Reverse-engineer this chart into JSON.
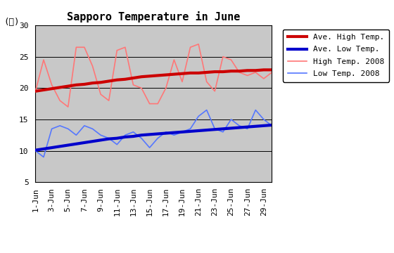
{
  "title": "Sapporo Temperature in June",
  "ylabel": "(℃)",
  "ylim": [
    5,
    30
  ],
  "yticks": [
    5,
    10,
    15,
    20,
    25,
    30
  ],
  "background_color": "#c8c8c8",
  "days": [
    1,
    2,
    3,
    4,
    5,
    6,
    7,
    8,
    9,
    10,
    11,
    12,
    13,
    14,
    15,
    16,
    17,
    18,
    19,
    20,
    21,
    22,
    23,
    24,
    25,
    26,
    27,
    28,
    29,
    30
  ],
  "x_tick_labels": [
    "1-Jun",
    "3-Jun",
    "5-Jun",
    "7-Jun",
    "9-Jun",
    "11-Jun",
    "13-Jun",
    "15-Jun",
    "17-Jun",
    "19-Jun",
    "21-Jun",
    "23-Jun",
    "25-Jun",
    "27-Jun",
    "29-Jun"
  ],
  "x_tick_positions": [
    1,
    3,
    5,
    7,
    9,
    11,
    13,
    15,
    17,
    19,
    21,
    23,
    25,
    27,
    29
  ],
  "ave_high": [
    19.5,
    19.7,
    19.9,
    20.1,
    20.3,
    20.5,
    20.6,
    20.8,
    20.9,
    21.1,
    21.3,
    21.4,
    21.6,
    21.8,
    21.9,
    22.0,
    22.1,
    22.2,
    22.3,
    22.4,
    22.4,
    22.5,
    22.6,
    22.6,
    22.7,
    22.7,
    22.8,
    22.8,
    22.9,
    22.9
  ],
  "ave_low": [
    10.1,
    10.3,
    10.5,
    10.7,
    10.9,
    11.1,
    11.3,
    11.5,
    11.7,
    11.9,
    12.0,
    12.2,
    12.3,
    12.5,
    12.6,
    12.7,
    12.8,
    12.9,
    13.0,
    13.1,
    13.2,
    13.3,
    13.4,
    13.5,
    13.6,
    13.7,
    13.8,
    13.9,
    14.0,
    14.1
  ],
  "high_2008": [
    19.5,
    24.5,
    20.5,
    18.0,
    17.0,
    26.5,
    26.5,
    23.5,
    19.0,
    18.0,
    26.0,
    26.5,
    20.5,
    20.0,
    17.5,
    17.5,
    20.0,
    24.5,
    21.0,
    26.5,
    27.0,
    21.0,
    19.5,
    25.0,
    24.5,
    22.5,
    22.0,
    22.5,
    21.5,
    22.5
  ],
  "low_2008": [
    10.0,
    9.0,
    13.5,
    14.0,
    13.5,
    12.5,
    14.0,
    13.5,
    12.5,
    12.0,
    11.0,
    12.5,
    13.0,
    12.0,
    10.5,
    12.0,
    13.0,
    12.5,
    13.0,
    13.5,
    15.5,
    16.5,
    13.5,
    13.0,
    15.0,
    14.0,
    13.5,
    16.5,
    15.0,
    14.0
  ],
  "ave_high_color": "#cc0000",
  "ave_low_color": "#0000cc",
  "high_2008_color": "#ff7777",
  "low_2008_color": "#5577ff",
  "ave_high_lw": 3.0,
  "ave_low_lw": 3.0,
  "high_2008_lw": 1.2,
  "low_2008_lw": 1.2,
  "title_fontsize": 11,
  "tick_fontsize": 8,
  "legend_fontsize": 8
}
